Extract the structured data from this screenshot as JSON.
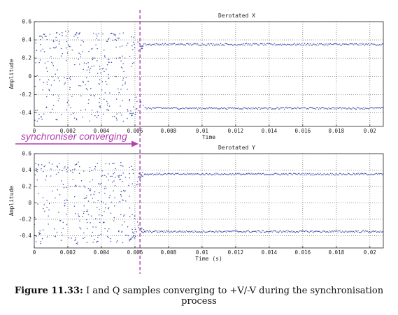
{
  "colors": {
    "points": "#3d4fa8",
    "annotation": "#b03fb0",
    "grid": "#555555",
    "axis": "#222222"
  },
  "annotation": {
    "text": "synchroniser converging",
    "marker_time": 0.0063
  },
  "caption": {
    "label": "Figure 11.33:",
    "text": "I and Q samples converging to +V/-V during the synchronisation process"
  },
  "chart_data": [
    {
      "type": "scatter",
      "title": "Derotated X",
      "xlabel": "Time",
      "ylabel": "Amplitude",
      "xlim": [
        0,
        0.0208
      ],
      "ylim": [
        -0.55,
        0.6
      ],
      "xticks": [
        0,
        0.002,
        0.004,
        0.006,
        0.008,
        0.01,
        0.012,
        0.014,
        0.016,
        0.018,
        0.02
      ],
      "xtick_labels": [
        "0",
        "0.002",
        "0.004",
        "0.006",
        "0.008",
        "0.01",
        "0.012",
        "0.014",
        "0.016",
        "0.018",
        "0.02"
      ],
      "yticks": [
        -0.4,
        -0.2,
        0,
        0.2,
        0.4,
        0.6
      ],
      "ytick_labels": [
        "-0.4",
        "-0.2",
        "0",
        "0.2",
        "0.4",
        "0.6"
      ],
      "grid": true,
      "converged_levels": [
        0.35,
        -0.35
      ],
      "converged_from": 0.0066,
      "transient_range": [
        -0.5,
        0.5
      ],
      "transient_end": 0.0066
    },
    {
      "type": "scatter",
      "title": "Derotated Y",
      "xlabel": "Time (s)",
      "ylabel": "Amplitude",
      "xlim": [
        0,
        0.0208
      ],
      "ylim": [
        -0.55,
        0.6
      ],
      "xticks": [
        0,
        0.002,
        0.004,
        0.006,
        0.008,
        0.01,
        0.012,
        0.014,
        0.016,
        0.018,
        0.02
      ],
      "xtick_labels": [
        "0",
        "0.002",
        "0.004",
        "0.006",
        "0.008",
        "0.01",
        "0.012",
        "0.014",
        "0.016",
        "0.018",
        "0.02"
      ],
      "yticks": [
        -0.4,
        -0.2,
        0,
        0.2,
        0.4,
        0.6
      ],
      "ytick_labels": [
        "-0.4",
        "-0.2",
        "0",
        "0.2",
        "0.4",
        "0.6"
      ],
      "grid": true,
      "converged_levels": [
        0.35,
        -0.35
      ],
      "converged_from": 0.0066,
      "transient_range": [
        -0.5,
        0.5
      ],
      "transient_end": 0.0066
    }
  ]
}
